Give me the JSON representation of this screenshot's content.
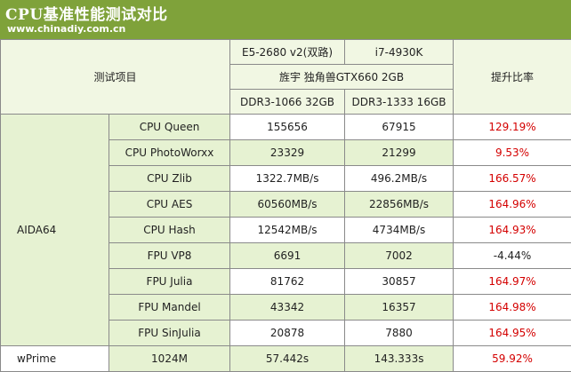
{
  "banner": {
    "title": "CPU基准性能测试对比",
    "url": "www.chinadiy.com.cn"
  },
  "header": {
    "item_label": "测试项目",
    "cpu_a": "E5-2680 v2(双路)",
    "cpu_b": "i7-4930K",
    "gpu": "旌宇 独角兽GTX660 2GB",
    "ram_a": "DDR3-1066 32GB",
    "ram_b": "DDR3-1333 16GB",
    "gain_label": "提升比率"
  },
  "groups": {
    "aida64": "AIDA64",
    "wprime": "wPrime"
  },
  "rows": [
    {
      "name": "CPU Queen",
      "a": "155656",
      "b": "67915",
      "gain": "129.19%",
      "positive": true
    },
    {
      "name": "CPU PhotoWorxx",
      "a": "23329",
      "b": "21299",
      "gain": "9.53%",
      "positive": true
    },
    {
      "name": "CPU Zlib",
      "a": "1322.7MB/s",
      "b": "496.2MB/s",
      "gain": "166.57%",
      "positive": true
    },
    {
      "name": "CPU AES",
      "a": "60560MB/s",
      "b": "22856MB/s",
      "gain": "164.96%",
      "positive": true
    },
    {
      "name": "CPU Hash",
      "a": "12542MB/s",
      "b": "4734MB/s",
      "gain": "164.93%",
      "positive": true
    },
    {
      "name": "FPU VP8",
      "a": "6691",
      "b": "7002",
      "gain": "-4.44%",
      "positive": false
    },
    {
      "name": "FPU Julia",
      "a": "81762",
      "b": "30857",
      "gain": "164.97%",
      "positive": true
    },
    {
      "name": "FPU Mandel",
      "a": "43342",
      "b": "16357",
      "gain": "164.98%",
      "positive": true
    },
    {
      "name": "FPU SinJulia",
      "a": "20878",
      "b": "7880",
      "gain": "164.95%",
      "positive": true
    },
    {
      "name": "1024M",
      "a": "57.442s",
      "b": "143.333s",
      "gain": "59.92%",
      "positive": true
    }
  ]
}
